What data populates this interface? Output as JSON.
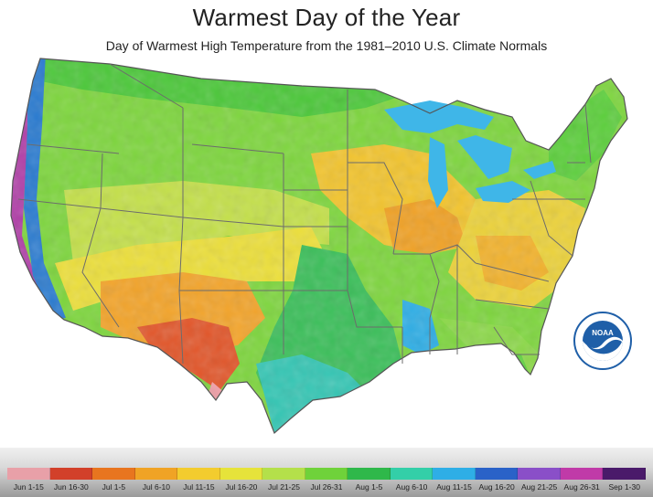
{
  "title": "Warmest Day of the Year",
  "subtitle": "Day of Warmest High Temperature from the 1981–2010 U.S. Climate Normals",
  "logo": {
    "text": "NOAA",
    "ring_color": "#1f5fa8"
  },
  "legend": [
    {
      "label": "Jun 1-15",
      "color": "#e8a0a8"
    },
    {
      "label": "Jun 16-30",
      "color": "#d2402a"
    },
    {
      "label": "Jul 1-5",
      "color": "#e8751f"
    },
    {
      "label": "Jul 6-10",
      "color": "#f0a325"
    },
    {
      "label": "Jul 11-15",
      "color": "#f3cc2e"
    },
    {
      "label": "Jul 16-20",
      "color": "#e6e33a"
    },
    {
      "label": "Jul 21-25",
      "color": "#b4e04a"
    },
    {
      "label": "Jul 26-31",
      "color": "#6fd23a"
    },
    {
      "label": "Aug 1-5",
      "color": "#2fb84a"
    },
    {
      "label": "Aug 6-10",
      "color": "#33cfa8"
    },
    {
      "label": "Aug 11-15",
      "color": "#2eaee6"
    },
    {
      "label": "Aug 16-20",
      "color": "#2a62c8"
    },
    {
      "label": "Aug 21-25",
      "color": "#8a4fc8"
    },
    {
      "label": "Aug 26-31",
      "color": "#c03aa8"
    },
    {
      "label": "Sep 1-30",
      "color": "#4a1a6a"
    }
  ]
}
